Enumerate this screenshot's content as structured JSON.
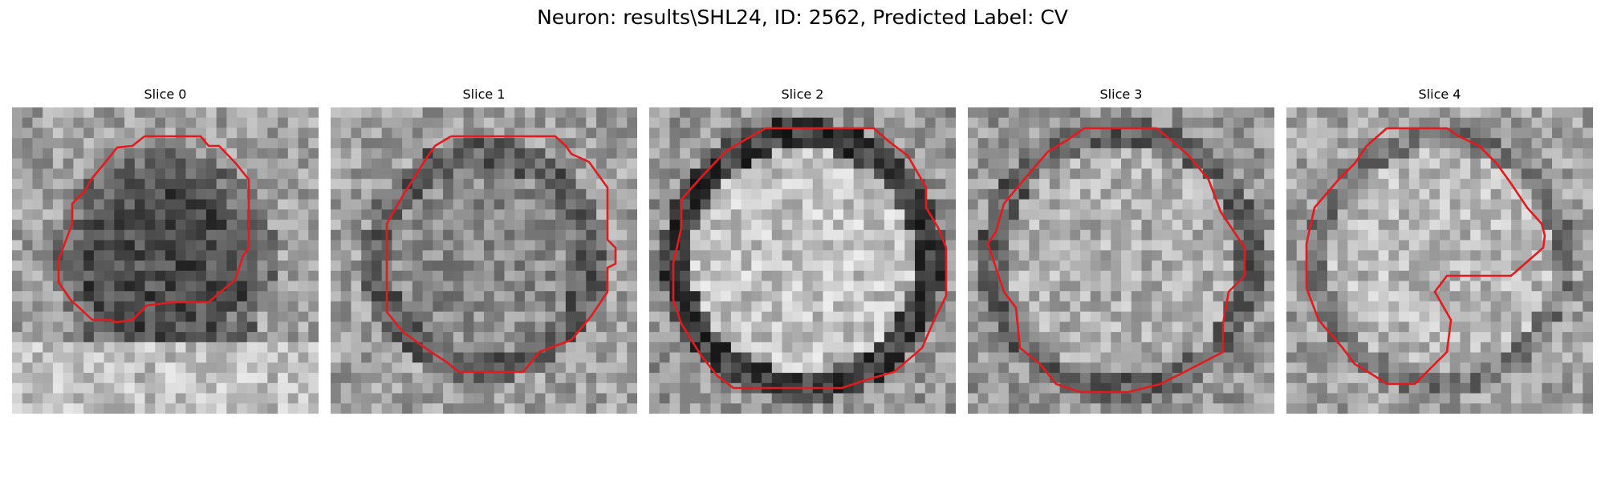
{
  "figure": {
    "title": "Neuron: results\\SHL24, ID: 2562, Predicted Label: CV"
  },
  "colors": {
    "contour": "#e41a1c",
    "background": "#ffffff"
  },
  "slices": [
    {
      "label": "Slice 0"
    },
    {
      "label": "Slice 1"
    },
    {
      "label": "Slice 2"
    },
    {
      "label": "Slice 3"
    },
    {
      "label": "Slice 4"
    }
  ]
}
